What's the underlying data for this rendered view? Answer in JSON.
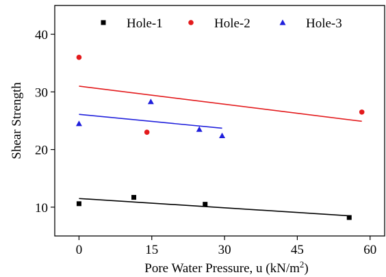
{
  "chart_data": {
    "type": "scatter",
    "xlabel": "Pore Water Pressure, u (kN/m",
    "xlabel_sup": "2",
    "xlabel_close": ")",
    "ylabel": "Shear Strength",
    "xlim": [
      -5,
      63
    ],
    "ylim": [
      5,
      45
    ],
    "xticks": [
      0,
      15,
      30,
      45,
      60
    ],
    "yticks": [
      10,
      20,
      30,
      40
    ],
    "legend_position": "top",
    "grid": false,
    "series": [
      {
        "name": "Hole-1",
        "marker": "square",
        "color": "#000000",
        "points": [
          [
            0,
            10.6
          ],
          [
            11.3,
            11.7
          ],
          [
            26.0,
            10.5
          ],
          [
            55.7,
            8.2
          ]
        ],
        "fit": [
          [
            0,
            11.5
          ],
          [
            55.7,
            8.5
          ]
        ]
      },
      {
        "name": "Hole-2",
        "marker": "circle",
        "color": "#e31a1c",
        "points": [
          [
            0,
            36.0
          ],
          [
            14.0,
            23.0
          ],
          [
            58.3,
            26.5
          ]
        ],
        "fit": [
          [
            0,
            31.0
          ],
          [
            58.3,
            24.9
          ]
        ]
      },
      {
        "name": "Hole-3",
        "marker": "triangle",
        "color": "#1f1fdc",
        "points": [
          [
            0,
            24.5
          ],
          [
            14.8,
            28.3
          ],
          [
            24.8,
            23.5
          ],
          [
            29.5,
            22.4
          ]
        ],
        "fit": [
          [
            0,
            26.1
          ],
          [
            29.5,
            23.7
          ]
        ]
      }
    ]
  }
}
